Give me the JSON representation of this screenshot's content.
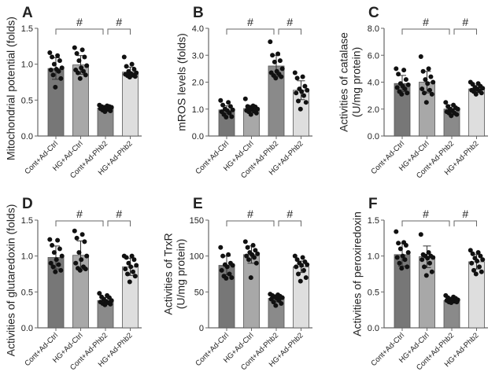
{
  "chart_data": [
    {
      "type": "bar",
      "panel": "A",
      "ylabel": [
        "Mitochondrial potential (folds)"
      ],
      "ylim": [
        0,
        1.5
      ],
      "yticks": [
        "0.0",
        "0.5",
        "1.0",
        "1.5"
      ],
      "tick_values": [
        0,
        0.5,
        1.0,
        1.5
      ],
      "categories": [
        "Cont+Ad-Ctrl",
        "HG+Ad-Ctrl",
        "Cont+Ad-Phb2",
        "HG+Ad-Phb2"
      ],
      "significance": [
        "#",
        "#"
      ],
      "means": [
        0.94,
        0.99,
        0.39,
        0.89
      ],
      "sd": [
        0.15,
        0.13,
        0.03,
        0.07
      ],
      "points": [
        [
          1.16,
          1.12,
          1.1,
          1.05,
          1.0,
          0.95,
          0.93,
          0.92,
          0.9,
          0.85,
          0.8,
          0.68
        ],
        [
          1.23,
          1.2,
          1.15,
          1.1,
          1.05,
          0.98,
          0.95,
          0.92,
          0.9,
          0.88,
          0.85,
          0.8
        ],
        [
          0.43,
          0.42,
          0.41,
          0.41,
          0.4,
          0.4,
          0.39,
          0.38,
          0.37,
          0.36,
          0.35,
          0.34
        ],
        [
          1.1,
          1.0,
          0.97,
          0.93,
          0.9,
          0.88,
          0.87,
          0.86,
          0.85,
          0.84,
          0.83,
          0.82
        ]
      ]
    },
    {
      "type": "bar",
      "panel": "B",
      "ylabel": [
        "mROS levels (folds)"
      ],
      "ylim": [
        0,
        4
      ],
      "yticks": [
        "0.0",
        "1.0",
        "2.0",
        "3.0",
        "4.0"
      ],
      "tick_values": [
        0,
        1,
        2,
        3,
        4
      ],
      "categories": [
        "Cont+Ad-Ctrl",
        "HG+Ad-Ctrl",
        "Cont+Ad-Phb2",
        "HG+Ad-Phb2"
      ],
      "significance": [
        "#",
        "#"
      ],
      "means": [
        0.97,
        1.02,
        2.6,
        1.7
      ],
      "sd": [
        0.15,
        0.12,
        0.4,
        0.35
      ],
      "points": [
        [
          1.32,
          1.25,
          1.15,
          1.1,
          1.0,
          0.97,
          0.95,
          0.9,
          0.85,
          0.8,
          0.72,
          0.7
        ],
        [
          1.38,
          1.12,
          1.1,
          1.08,
          1.05,
          1.0,
          0.98,
          0.95,
          0.92,
          0.9,
          0.85,
          0.8
        ],
        [
          3.5,
          3.05,
          3.0,
          2.8,
          2.75,
          2.5,
          2.4,
          2.35,
          2.3,
          2.25,
          2.2,
          2.15
        ],
        [
          2.35,
          2.2,
          2.15,
          1.85,
          1.75,
          1.7,
          1.65,
          1.6,
          1.5,
          1.3,
          1.25,
          1.0
        ]
      ]
    },
    {
      "type": "bar",
      "panel": "C",
      "ylabel": [
        "Activities of catalase",
        "(U/mg protein)"
      ],
      "ylim": [
        0,
        8
      ],
      "yticks": [
        "0.0",
        "2.0",
        "4.0",
        "6.0",
        "8.0"
      ],
      "tick_values": [
        0,
        2,
        4,
        6,
        8
      ],
      "categories": [
        "Cont+Ad-Ctrl",
        "HG+Ad-Ctrl",
        "Cont+Ad-Phb2",
        "HG+Ad-Phb2"
      ],
      "significance": [
        "#",
        "#"
      ],
      "means": [
        3.9,
        4.0,
        2.0,
        3.5
      ],
      "sd": [
        0.6,
        0.8,
        0.3,
        0.25
      ],
      "points": [
        [
          5.0,
          4.9,
          4.6,
          4.2,
          3.9,
          3.8,
          3.7,
          3.6,
          3.5,
          3.3,
          3.2,
          3.1
        ],
        [
          5.9,
          5.0,
          4.8,
          4.4,
          4.2,
          4.0,
          3.9,
          3.5,
          3.4,
          3.2,
          3.1,
          2.5
        ],
        [
          2.5,
          2.3,
          2.2,
          2.1,
          2.0,
          2.0,
          1.9,
          1.8,
          1.7,
          1.7,
          1.6,
          1.5
        ],
        [
          4.0,
          3.9,
          3.85,
          3.7,
          3.6,
          3.55,
          3.5,
          3.4,
          3.35,
          3.3,
          3.2,
          3.1
        ]
      ]
    },
    {
      "type": "bar",
      "panel": "D",
      "ylabel": [
        "Activities of glutaredoxin (folds)"
      ],
      "ylim": [
        0,
        1.5
      ],
      "yticks": [
        "0.0",
        "0.5",
        "1.0",
        "1.5"
      ],
      "tick_values": [
        0,
        0.5,
        1.0,
        1.5
      ],
      "categories": [
        "Cont+Ad-Ctrl",
        "HG+Ad-Ctrl",
        "Cont+Ad-Phb2",
        "HG+Ad-Phb2"
      ],
      "significance": [
        "#",
        "#"
      ],
      "means": [
        0.98,
        1.01,
        0.38,
        0.85
      ],
      "sd": [
        0.16,
        0.2,
        0.04,
        0.12
      ],
      "points": [
        [
          1.23,
          1.22,
          1.15,
          1.1,
          1.05,
          1.0,
          0.95,
          0.9,
          0.88,
          0.85,
          0.8,
          0.78
        ],
        [
          1.35,
          1.3,
          1.25,
          1.2,
          1.05,
          1.0,
          0.95,
          0.9,
          0.85,
          0.83,
          0.82,
          0.8
        ],
        [
          0.48,
          0.45,
          0.43,
          0.42,
          0.4,
          0.38,
          0.37,
          0.36,
          0.35,
          0.34,
          0.33,
          0.32
        ],
        [
          1.0,
          1.0,
          0.98,
          0.95,
          0.9,
          0.87,
          0.85,
          0.82,
          0.78,
          0.75,
          0.72,
          0.64
        ]
      ]
    },
    {
      "type": "bar",
      "panel": "E",
      "ylabel": [
        "Activities of TrxR",
        "(U/mg protein)"
      ],
      "ylim": [
        0,
        150
      ],
      "yticks": [
        "0",
        "50",
        "100",
        "150"
      ],
      "tick_values": [
        0,
        50,
        100,
        150
      ],
      "categories": [
        "Cont+Ad-Ctrl",
        "HG+Ad-Ctrl",
        "Cont+Ad-Phb2",
        "HG+Ad-Phb2"
      ],
      "significance": [
        "#",
        "#"
      ],
      "means": [
        87,
        102,
        41,
        85
      ],
      "sd": [
        13,
        12,
        5,
        8
      ],
      "points": [
        [
          112,
          102,
          100,
          90,
          88,
          87,
          85,
          80,
          75,
          72,
          70,
          69
        ],
        [
          120,
          115,
          112,
          108,
          105,
          103,
          102,
          100,
          98,
          95,
          90,
          70
        ],
        [
          47,
          46,
          45,
          44,
          43,
          42,
          41,
          40,
          38,
          36,
          34,
          31
        ],
        [
          100,
          98,
          95,
          92,
          90,
          88,
          87,
          85,
          80,
          75,
          70,
          65
        ]
      ]
    },
    {
      "type": "bar",
      "panel": "F",
      "ylabel": [
        "Activities of peroxiredoxin"
      ],
      "ylim": [
        0,
        1.5
      ],
      "yticks": [
        "0.0",
        "0.5",
        "1.0",
        "1.5"
      ],
      "tick_values": [
        0,
        0.5,
        1.0,
        1.5
      ],
      "categories": [
        "Cont+Ad-Ctrl",
        "HG+Ad-Ctrl",
        "Cont+Ad-Phb2",
        "HG+Ad-Phb2"
      ],
      "significance": [
        "#",
        "#"
      ],
      "means": [
        1.02,
        0.99,
        0.38,
        0.92
      ],
      "sd": [
        0.16,
        0.15,
        0.03,
        0.1
      ],
      "points": [
        [
          1.34,
          1.19,
          1.18,
          1.15,
          1.1,
          1.05,
          1.0,
          0.98,
          0.95,
          0.9,
          0.85,
          0.83
        ],
        [
          1.3,
          1.05,
          1.02,
          1.0,
          1.0,
          0.98,
          0.97,
          0.95,
          0.9,
          0.85,
          0.78,
          0.73
        ],
        [
          0.45,
          0.43,
          0.42,
          0.41,
          0.4,
          0.39,
          0.38,
          0.38,
          0.37,
          0.36,
          0.36,
          0.35
        ],
        [
          1.08,
          1.05,
          1.03,
          1.0,
          0.97,
          0.95,
          0.93,
          0.9,
          0.85,
          0.8,
          0.78,
          0.75
        ]
      ]
    }
  ],
  "colors": {
    "bars": [
      "#777777",
      "#a8a8a8",
      "#8a8a8a",
      "#dedede"
    ],
    "points": "#111111",
    "axis": "#666666"
  }
}
